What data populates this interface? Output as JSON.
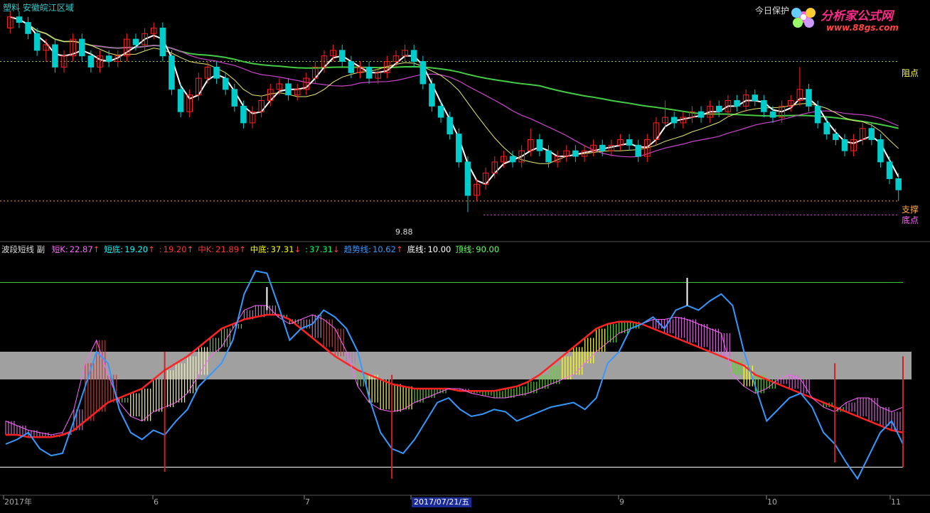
{
  "header": {
    "title": "塑料 安徽皖江区域",
    "right_text": "今日保护"
  },
  "logo": {
    "main": "分析家公式网",
    "url": "www.88gs.com"
  },
  "labels": {
    "pressure": "阻点",
    "support": "支撑",
    "bottom": "底点",
    "low_price": "9.88"
  },
  "indicator": {
    "name": "波段短线 副",
    "items": [
      {
        "label": "短K:",
        "value": "22.87",
        "arrow": "↑",
        "color": "#ff66ff"
      },
      {
        "label": "短底:",
        "value": "19.20",
        "arrow": "↑",
        "color": "#00ffff"
      },
      {
        "label": ":",
        "value": "19.20",
        "arrow": "↑",
        "color": "#ff3333"
      },
      {
        "label": "中K:",
        "value": "21.89",
        "arrow": "↑",
        "color": "#ff3333"
      },
      {
        "label": "中底:",
        "value": "37.31",
        "arrow": "↓",
        "color": "#ffff00"
      },
      {
        "label": ":",
        "value": "37.31",
        "arrow": "↓",
        "color": "#00ff66"
      },
      {
        "label": "趋势线:",
        "value": "10.62",
        "arrow": "↑",
        "color": "#3399ff"
      },
      {
        "label": "底线:",
        "value": "10.00",
        "arrow": "",
        "color": "#ffffff"
      },
      {
        "label": "顶线:",
        "value": "90.00",
        "arrow": "",
        "color": "#66ff66"
      }
    ]
  },
  "xaxis": {
    "labels": [
      "2017年",
      "6",
      "7",
      "2017/07/21/五",
      "9",
      "10",
      "11"
    ]
  },
  "colors": {
    "up": "#ff2222",
    "down": "#00cccc",
    "ma5": "#ffffff",
    "ma10": "#e8e870",
    "ma20": "#cc44cc",
    "ma60": "#44cc44",
    "trend": "#3399ff",
    "band": "#a0a0a0"
  },
  "chart_data": {
    "type": "candlestick",
    "ylim": [
      9.5,
      13.6
    ],
    "levels": {
      "resistance": 12.6,
      "support": 10.1,
      "bottom": 9.85
    },
    "candles": [
      [
        13.2,
        13.4,
        13.1,
        13.5
      ],
      [
        13.4,
        13.3,
        13.2,
        13.5
      ],
      [
        13.3,
        13.1,
        13.0,
        13.4
      ],
      [
        13.1,
        12.8,
        12.7,
        13.2
      ],
      [
        12.8,
        12.9,
        12.6,
        13.0
      ],
      [
        12.9,
        12.5,
        12.4,
        13.0
      ],
      [
        12.5,
        12.7,
        12.4,
        12.8
      ],
      [
        12.7,
        13.0,
        12.6,
        13.1
      ],
      [
        13.0,
        12.7,
        12.6,
        13.1
      ],
      [
        12.7,
        12.5,
        12.4,
        12.8
      ],
      [
        12.5,
        12.7,
        12.4,
        12.8
      ],
      [
        12.7,
        12.6,
        12.5,
        12.8
      ],
      [
        12.6,
        12.7,
        12.5,
        12.8
      ],
      [
        12.7,
        13.0,
        12.6,
        13.1
      ],
      [
        13.0,
        12.9,
        12.8,
        13.1
      ],
      [
        12.9,
        13.1,
        12.8,
        13.2
      ],
      [
        13.1,
        13.2,
        13.0,
        13.3
      ],
      [
        13.2,
        12.7,
        12.6,
        13.3
      ],
      [
        12.7,
        12.1,
        12.0,
        12.8
      ],
      [
        12.1,
        11.7,
        11.6,
        12.2
      ],
      [
        11.7,
        12.0,
        11.6,
        12.1
      ],
      [
        12.0,
        12.3,
        11.9,
        12.4
      ],
      [
        12.3,
        12.5,
        12.2,
        12.6
      ],
      [
        12.5,
        12.3,
        12.2,
        12.6
      ],
      [
        12.3,
        12.1,
        12.0,
        12.4
      ],
      [
        12.1,
        11.8,
        11.7,
        12.2
      ],
      [
        11.8,
        11.5,
        11.4,
        11.9
      ],
      [
        11.5,
        11.7,
        11.4,
        11.8
      ],
      [
        11.7,
        11.9,
        11.6,
        12.0
      ],
      [
        11.9,
        12.1,
        11.8,
        12.2
      ],
      [
        12.1,
        12.2,
        12.0,
        12.3
      ],
      [
        12.2,
        12.0,
        11.9,
        12.3
      ],
      [
        12.0,
        12.1,
        11.9,
        12.2
      ],
      [
        12.1,
        12.3,
        12.0,
        12.4
      ],
      [
        12.3,
        12.5,
        12.2,
        12.6
      ],
      [
        12.5,
        12.7,
        12.4,
        12.8
      ],
      [
        12.7,
        12.8,
        12.6,
        12.9
      ],
      [
        12.8,
        12.6,
        12.5,
        12.9
      ],
      [
        12.6,
        12.4,
        12.3,
        12.7
      ],
      [
        12.4,
        12.5,
        12.3,
        12.6
      ],
      [
        12.5,
        12.3,
        12.2,
        12.6
      ],
      [
        12.3,
        12.4,
        12.2,
        12.5
      ],
      [
        12.4,
        12.6,
        12.3,
        12.7
      ],
      [
        12.6,
        12.7,
        12.5,
        12.8
      ],
      [
        12.7,
        12.8,
        12.6,
        12.9
      ],
      [
        12.8,
        12.6,
        12.5,
        12.9
      ],
      [
        12.6,
        12.2,
        12.1,
        12.7
      ],
      [
        12.2,
        11.8,
        11.7,
        12.3
      ],
      [
        11.8,
        11.6,
        11.5,
        11.9
      ],
      [
        11.6,
        11.3,
        11.2,
        11.7
      ],
      [
        11.3,
        10.8,
        10.7,
        11.4
      ],
      [
        10.8,
        10.2,
        9.9,
        10.9
      ],
      [
        10.2,
        10.4,
        10.1,
        10.5
      ],
      [
        10.4,
        10.6,
        10.3,
        10.7
      ],
      [
        10.6,
        10.8,
        10.5,
        10.9
      ],
      [
        10.8,
        10.9,
        10.7,
        11.0
      ],
      [
        10.9,
        10.8,
        10.7,
        11.0
      ],
      [
        10.8,
        11.0,
        10.7,
        11.1
      ],
      [
        11.0,
        11.2,
        10.9,
        11.4
      ],
      [
        11.2,
        11.0,
        10.9,
        11.3
      ],
      [
        11.0,
        10.8,
        10.7,
        11.1
      ],
      [
        10.8,
        10.9,
        10.7,
        11.0
      ],
      [
        10.9,
        11.0,
        10.8,
        11.1
      ],
      [
        11.0,
        10.9,
        10.8,
        11.1
      ],
      [
        10.9,
        11.0,
        10.8,
        11.1
      ],
      [
        11.0,
        11.1,
        10.9,
        11.2
      ],
      [
        11.1,
        11.0,
        10.9,
        11.2
      ],
      [
        11.0,
        11.1,
        10.9,
        11.2
      ],
      [
        11.1,
        11.2,
        11.0,
        11.3
      ],
      [
        11.2,
        11.1,
        11.0,
        11.3
      ],
      [
        11.1,
        10.9,
        10.8,
        11.2
      ],
      [
        10.9,
        11.2,
        10.8,
        11.3
      ],
      [
        11.2,
        11.5,
        11.1,
        11.6
      ],
      [
        11.5,
        11.6,
        11.4,
        11.9
      ],
      [
        11.6,
        11.5,
        11.4,
        11.7
      ],
      [
        11.5,
        11.6,
        11.4,
        11.7
      ],
      [
        11.6,
        11.7,
        11.5,
        11.8
      ],
      [
        11.7,
        11.6,
        11.5,
        11.8
      ],
      [
        11.6,
        11.8,
        11.5,
        11.9
      ],
      [
        11.8,
        11.7,
        11.6,
        11.9
      ],
      [
        11.7,
        11.9,
        11.6,
        12.0
      ],
      [
        11.9,
        11.8,
        11.7,
        12.0
      ],
      [
        11.8,
        12.0,
        11.7,
        12.1
      ],
      [
        12.0,
        11.9,
        11.8,
        12.1
      ],
      [
        11.9,
        11.7,
        11.6,
        12.0
      ],
      [
        11.7,
        11.6,
        11.5,
        11.8
      ],
      [
        11.6,
        11.8,
        11.5,
        11.9
      ],
      [
        11.8,
        11.9,
        11.7,
        12.0
      ],
      [
        11.9,
        12.1,
        11.8,
        12.5
      ],
      [
        12.1,
        11.8,
        11.7,
        12.2
      ],
      [
        11.8,
        11.5,
        11.4,
        11.9
      ],
      [
        11.5,
        11.3,
        11.2,
        11.6
      ],
      [
        11.3,
        11.2,
        11.1,
        11.4
      ],
      [
        11.2,
        11.0,
        10.9,
        11.3
      ],
      [
        11.0,
        11.2,
        10.9,
        11.3
      ],
      [
        11.2,
        11.4,
        11.1,
        11.5
      ],
      [
        11.4,
        11.2,
        11.1,
        11.5
      ],
      [
        11.2,
        10.8,
        10.7,
        11.3
      ],
      [
        10.8,
        10.5,
        10.4,
        10.9
      ],
      [
        10.5,
        10.3,
        10.1,
        10.6
      ]
    ],
    "osc": {
      "trend": [
        20,
        22,
        25,
        18,
        15,
        16,
        30,
        45,
        60,
        55,
        35,
        25,
        22,
        26,
        24,
        30,
        35,
        45,
        50,
        55,
        65,
        85,
        95,
        94,
        80,
        65,
        70,
        72,
        78,
        75,
        70,
        60,
        40,
        25,
        18,
        16,
        22,
        30,
        38,
        40,
        35,
        32,
        33,
        35,
        34,
        30,
        32,
        34,
        36,
        37,
        38,
        35,
        40,
        55,
        60,
        70,
        72,
        75,
        70,
        78,
        80,
        78,
        82,
        85,
        80,
        60,
        45,
        30,
        35,
        40,
        42,
        36,
        25,
        20,
        12,
        5,
        15,
        25,
        30,
        20
      ],
      "short": [
        30,
        28,
        26,
        25,
        24,
        25,
        35,
        55,
        65,
        50,
        38,
        32,
        30,
        34,
        36,
        38,
        42,
        50,
        58,
        62,
        70,
        78,
        80,
        80,
        75,
        72,
        74,
        76,
        74,
        70,
        60,
        45,
        38,
        35,
        34,
        35,
        38,
        40,
        42,
        44,
        44,
        42,
        41,
        40,
        40,
        41,
        42,
        44,
        46,
        48,
        50,
        55,
        60,
        64,
        68,
        70,
        72,
        74,
        74,
        75,
        74,
        72,
        70,
        68,
        50,
        45,
        42,
        44,
        48,
        50,
        48,
        40,
        36,
        34,
        38,
        40,
        40,
        36,
        34,
        36
      ],
      "mid": [
        24,
        24,
        23,
        23,
        23,
        24,
        26,
        30,
        34,
        38,
        40,
        42,
        44,
        48,
        52,
        55,
        58,
        62,
        66,
        70,
        72,
        74,
        75,
        76,
        76,
        74,
        70,
        66,
        62,
        58,
        55,
        52,
        50,
        48,
        46,
        45,
        44,
        44,
        44,
        44,
        43,
        43,
        43,
        43,
        44,
        45,
        47,
        50,
        54,
        58,
        62,
        66,
        70,
        72,
        73,
        73,
        72,
        70,
        68,
        66,
        64,
        62,
        60,
        58,
        56,
        54,
        50,
        48,
        46,
        44,
        42,
        40,
        38,
        36,
        34,
        32,
        30,
        28,
        26,
        25
      ]
    }
  }
}
